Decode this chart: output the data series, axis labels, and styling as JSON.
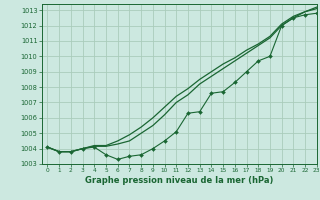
{
  "title": "Graphe pression niveau de la mer (hPa)",
  "bg_color": "#cce8e0",
  "grid_color": "#aaccbb",
  "line_color": "#1a6633",
  "xlim": [
    -0.5,
    23
  ],
  "ylim": [
    1003.0,
    1013.4
  ],
  "yticks": [
    1003,
    1004,
    1005,
    1006,
    1007,
    1008,
    1009,
    1010,
    1011,
    1012,
    1013
  ],
  "xticks": [
    0,
    1,
    2,
    3,
    4,
    5,
    6,
    7,
    8,
    9,
    10,
    11,
    12,
    13,
    14,
    15,
    16,
    17,
    18,
    19,
    20,
    21,
    22,
    23
  ],
  "series1_x": [
    0,
    1,
    2,
    3,
    4,
    5,
    6,
    7,
    8,
    9,
    10,
    11,
    12,
    13,
    14,
    15,
    16,
    17,
    18,
    19,
    20,
    21,
    22,
    23
  ],
  "series1": [
    1004.1,
    1003.8,
    1003.8,
    1004.0,
    1004.1,
    1003.6,
    1003.3,
    1003.5,
    1003.6,
    1004.0,
    1004.5,
    1005.1,
    1006.3,
    1006.4,
    1007.6,
    1007.7,
    1008.3,
    1009.0,
    1009.7,
    1010.0,
    1012.0,
    1012.5,
    1012.7,
    1012.8
  ],
  "series2_x": [
    0,
    1,
    2,
    3,
    4,
    5,
    6,
    7,
    8,
    9,
    10,
    11,
    12,
    13,
    14,
    15,
    16,
    17,
    18,
    19,
    20,
    21,
    22,
    23
  ],
  "series2": [
    1004.1,
    1003.8,
    1003.8,
    1004.0,
    1004.15,
    1004.15,
    1004.3,
    1004.5,
    1005.0,
    1005.5,
    1006.2,
    1007.0,
    1007.5,
    1008.2,
    1008.7,
    1009.2,
    1009.7,
    1010.2,
    1010.7,
    1011.2,
    1012.0,
    1012.5,
    1012.9,
    1013.2
  ],
  "series3_x": [
    0,
    1,
    2,
    3,
    4,
    5,
    6,
    7,
    8,
    9,
    10,
    11,
    12,
    13,
    14,
    15,
    16,
    17,
    18,
    19,
    20,
    21,
    22,
    23
  ],
  "series3": [
    1004.1,
    1003.8,
    1003.8,
    1004.0,
    1004.2,
    1004.2,
    1004.5,
    1004.9,
    1005.4,
    1006.0,
    1006.7,
    1007.4,
    1007.9,
    1008.5,
    1009.0,
    1009.5,
    1009.9,
    1010.4,
    1010.8,
    1011.3,
    1012.1,
    1012.6,
    1012.9,
    1013.1
  ]
}
